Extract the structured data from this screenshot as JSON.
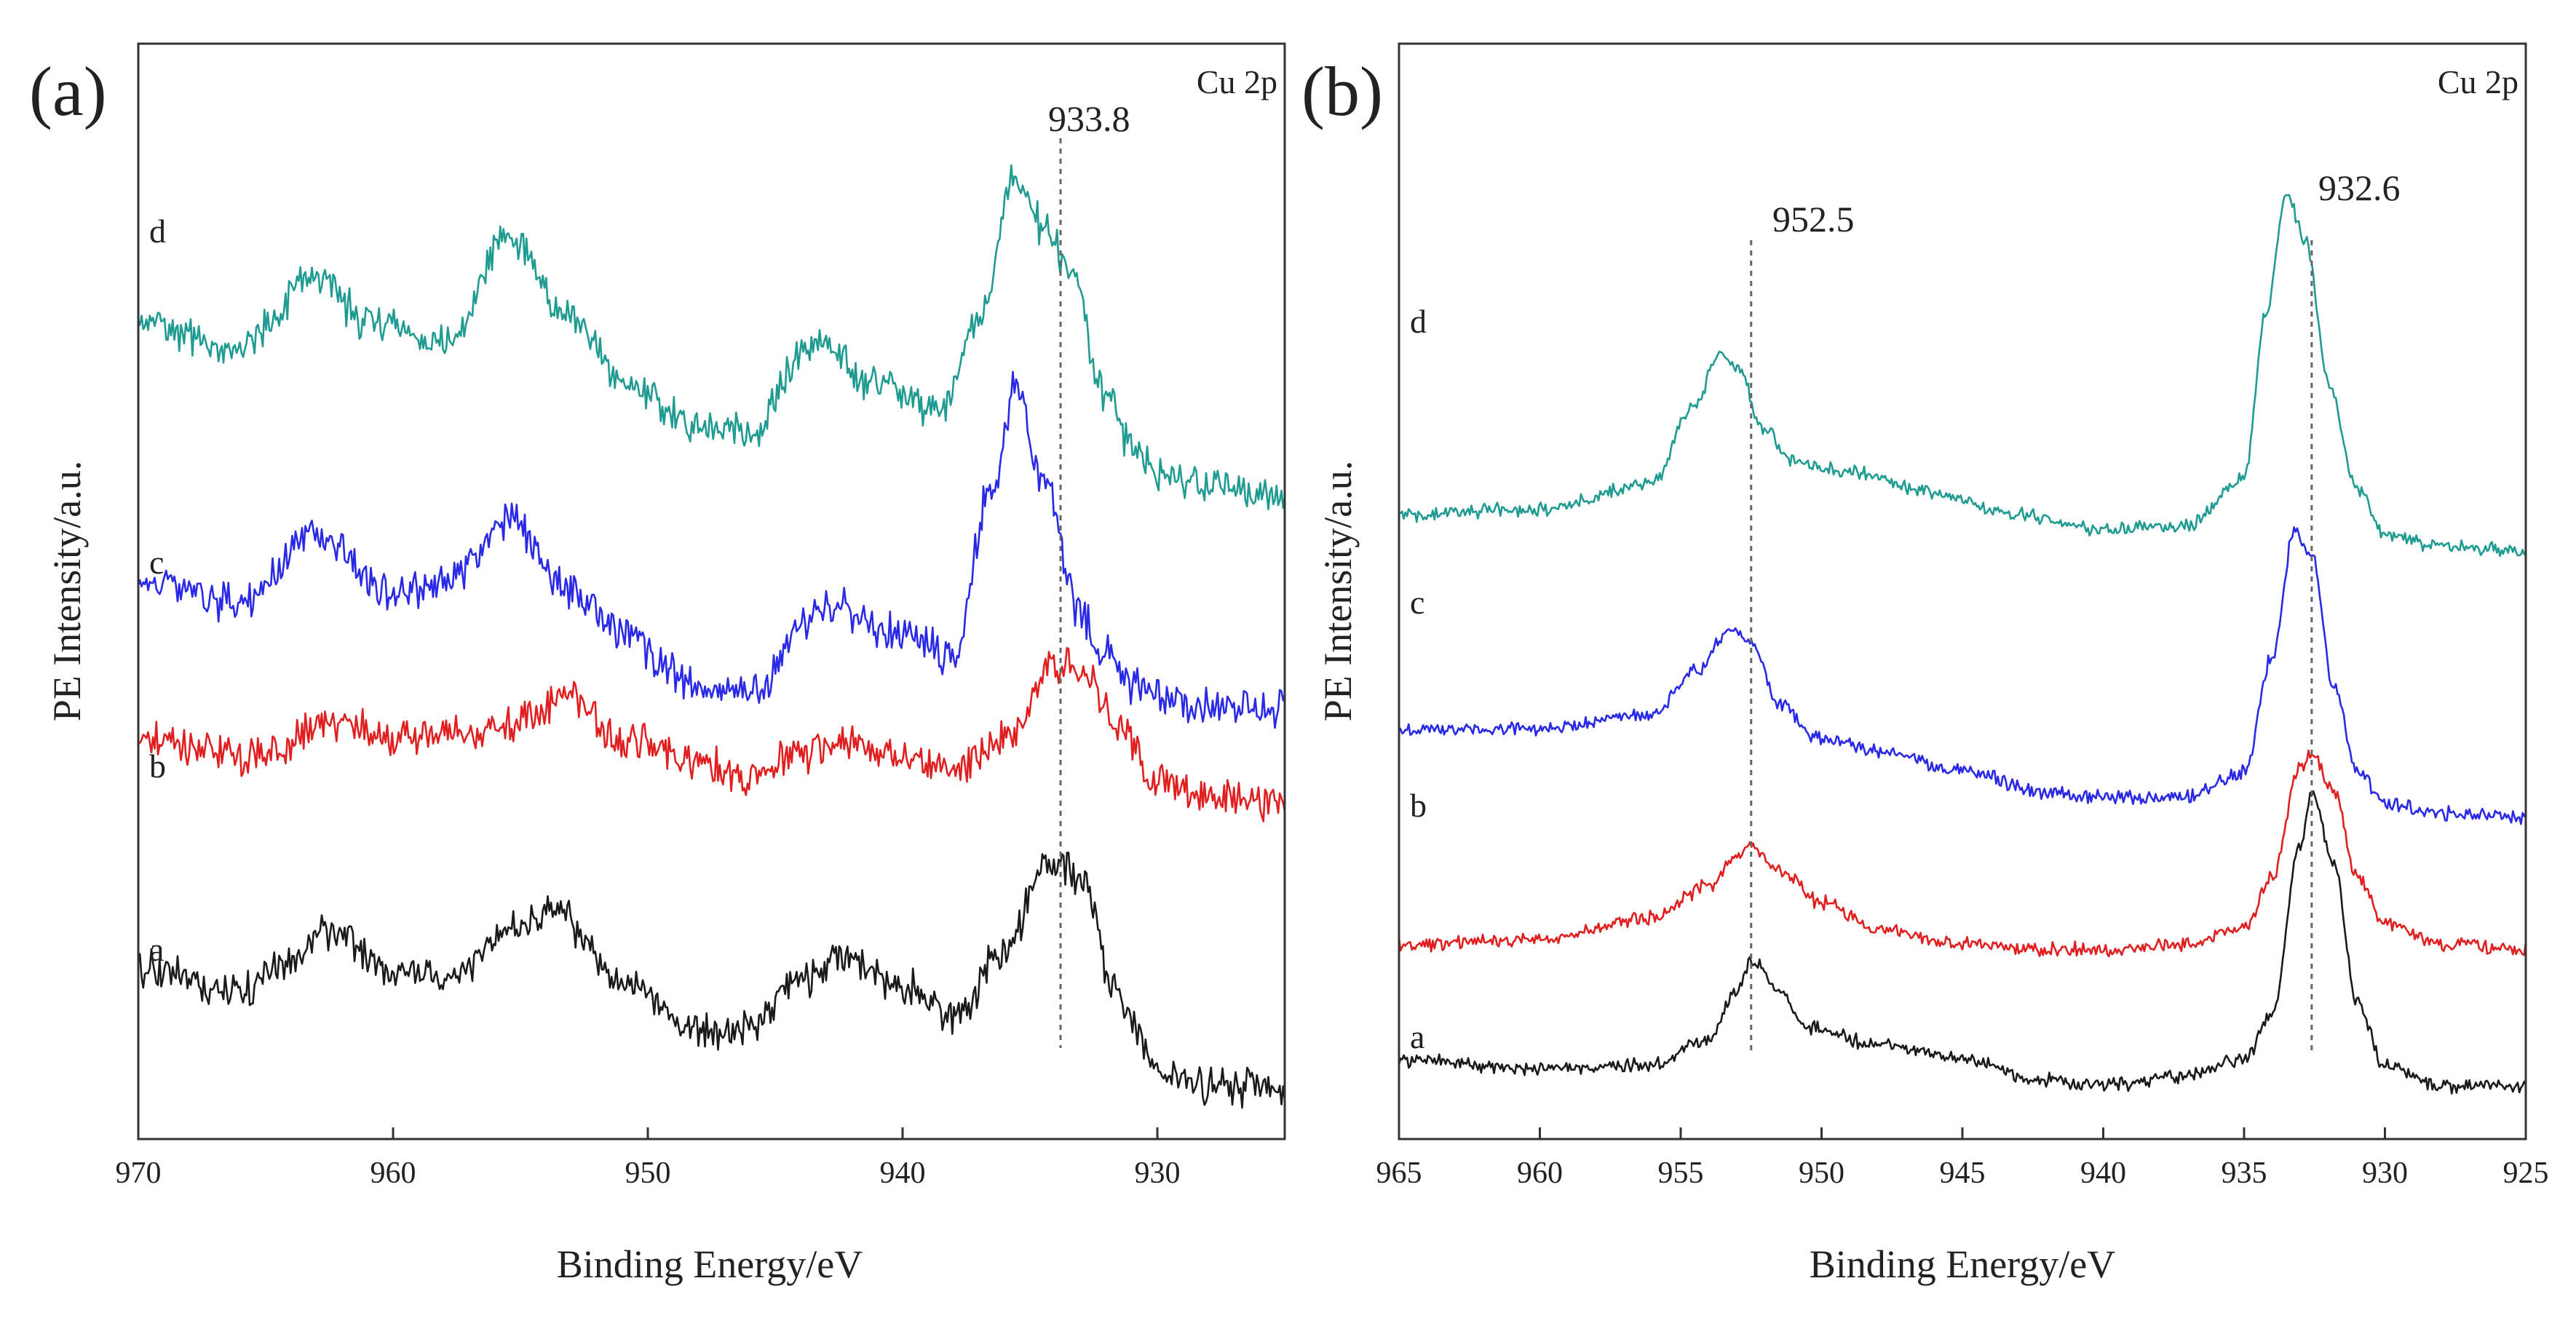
{
  "chart_data": [
    {
      "type": "line",
      "panel": "(a)",
      "tag": "Cu 2p",
      "xlabel": "Binding Energy/eV",
      "ylabel": "PE Intensity/a.u.",
      "xlim": [
        970,
        925
      ],
      "x_reversed": true,
      "xticks": [
        970,
        960,
        950,
        940,
        930
      ],
      "ylim": [
        0,
        10
      ],
      "yticks_shown": false,
      "reference_lines": [
        {
          "x": 933.8,
          "label": "933.8"
        }
      ],
      "noise": 0.22,
      "series": [
        {
          "name": "a",
          "color": "#1a1a1a",
          "x": [
            970,
            966,
            964,
            962.4,
            960,
            958,
            955,
            953.8,
            951,
            948,
            946,
            944,
            942.5,
            940,
            938,
            936,
            934.2,
            933,
            931.5,
            930,
            928,
            925
          ],
          "y": [
            1.4,
            1.2,
            1.5,
            1.8,
            1.4,
            1.35,
            1.8,
            2.0,
            1.3,
            0.85,
            0.85,
            1.3,
            1.55,
            1.25,
            0.95,
            1.6,
            2.5,
            2.3,
            1.1,
            0.45,
            0.3,
            0.25
          ]
        },
        {
          "name": "b",
          "color": "#e02020",
          "x": [
            970,
            966,
            962,
            960,
            956,
            953,
            951,
            948,
            946,
            944,
            942,
            940,
            938,
            936,
            934,
            933,
            931.5,
            930,
            928,
            925
          ],
          "y": [
            3.6,
            3.45,
            3.75,
            3.6,
            3.7,
            4.0,
            3.6,
            3.4,
            3.25,
            3.45,
            3.6,
            3.45,
            3.3,
            3.6,
            4.3,
            4.3,
            3.7,
            3.2,
            3.05,
            3.0
          ]
        },
        {
          "name": "c",
          "color": "#2a2ae6",
          "x": [
            970,
            966,
            963,
            960,
            958,
            955.5,
            953,
            951,
            948,
            946,
            943,
            940,
            938,
            936.5,
            935.5,
            934.5,
            933,
            932,
            931,
            930,
            928,
            925
          ],
          "y": [
            5.1,
            4.9,
            5.6,
            5.0,
            5.1,
            5.7,
            5.0,
            4.6,
            4.1,
            4.05,
            4.9,
            4.6,
            4.4,
            6.0,
            7.0,
            6.1,
            4.8,
            4.4,
            4.15,
            4.0,
            3.9,
            3.9
          ]
        },
        {
          "name": "d",
          "color": "#1f9b92",
          "x": [
            970,
            966,
            963,
            961,
            958,
            955.5,
            953,
            951,
            948,
            946,
            943.5,
            941,
            938.5,
            937,
            935.6,
            934.5,
            933.5,
            932,
            931,
            930,
            928,
            925
          ],
          "y": [
            7.6,
            7.35,
            8.0,
            7.6,
            7.35,
            8.4,
            7.6,
            7.0,
            6.6,
            6.55,
            7.35,
            7.0,
            6.75,
            7.6,
            9.0,
            8.5,
            8.1,
            6.9,
            6.4,
            6.15,
            6.0,
            5.95
          ]
        }
      ],
      "curve_labels": [
        "a",
        "b",
        "c",
        "d"
      ]
    },
    {
      "type": "line",
      "panel": "(b)",
      "tag": "Cu 2p",
      "xlabel": "Binding Energy/eV",
      "ylabel": "PE Intensity/a.u.",
      "xlim": [
        965,
        925
      ],
      "x_reversed": true,
      "xticks": [
        965,
        960,
        955,
        950,
        945,
        940,
        935,
        930,
        925
      ],
      "ylim": [
        0,
        10
      ],
      "yticks_shown": false,
      "reference_lines": [
        {
          "x": 952.5,
          "label": "952.5"
        },
        {
          "x": 932.6,
          "label": "932.6"
        }
      ],
      "noise": 0.08,
      "series": [
        {
          "name": "a",
          "color": "#1a1a1a",
          "x": [
            965,
            960,
            956,
            954,
            953,
            952.5,
            951.5,
            950.5,
            948,
            945,
            942,
            940,
            937,
            935,
            934,
            933,
            932.6,
            931.8,
            931,
            930,
            928,
            925
          ],
          "y": [
            0.55,
            0.45,
            0.5,
            0.75,
            1.2,
            1.5,
            1.2,
            0.85,
            0.7,
            0.55,
            0.35,
            0.3,
            0.4,
            0.55,
            1.0,
            2.6,
            3.1,
            2.4,
            1.1,
            0.5,
            0.3,
            0.3
          ]
        },
        {
          "name": "b",
          "color": "#e02020",
          "x": [
            965,
            960,
            956,
            954,
            953,
            952.5,
            951.5,
            950,
            948,
            945,
            942,
            940,
            937,
            935,
            934,
            933,
            932.6,
            931.8,
            931,
            930,
            928,
            925
          ],
          "y": [
            1.65,
            1.7,
            1.9,
            2.2,
            2.5,
            2.6,
            2.35,
            2.05,
            1.8,
            1.65,
            1.6,
            1.6,
            1.65,
            1.8,
            2.3,
            3.35,
            3.45,
            3.1,
            2.3,
            1.85,
            1.65,
            1.6
          ]
        },
        {
          "name": "c",
          "color": "#2a2ae6",
          "x": [
            965,
            960,
            956,
            954.5,
            953.2,
            952.5,
            951.5,
            950,
            948,
            945,
            942,
            940,
            937,
            935,
            934,
            933.2,
            932.6,
            931.8,
            931,
            930,
            928,
            925
          ],
          "y": [
            3.7,
            3.7,
            3.85,
            4.25,
            4.65,
            4.5,
            3.95,
            3.6,
            3.5,
            3.3,
            3.1,
            3.05,
            3.05,
            3.3,
            4.4,
            5.6,
            5.35,
            4.1,
            3.3,
            3.0,
            2.9,
            2.85
          ]
        },
        {
          "name": "d",
          "color": "#1f9b92",
          "x": [
            965,
            960,
            956,
            954.5,
            953.6,
            953,
            952,
            951,
            949,
            946,
            943,
            940,
            937,
            935,
            934.2,
            933.5,
            932.8,
            932,
            931,
            930,
            928,
            925
          ],
          "y": [
            5.75,
            5.8,
            6.05,
            6.8,
            7.3,
            7.15,
            6.55,
            6.25,
            6.15,
            5.95,
            5.75,
            5.6,
            5.65,
            6.1,
            7.7,
            8.8,
            8.35,
            7.0,
            6.0,
            5.55,
            5.45,
            5.4
          ]
        }
      ],
      "curve_labels": [
        "a",
        "b",
        "c",
        "d"
      ]
    }
  ]
}
